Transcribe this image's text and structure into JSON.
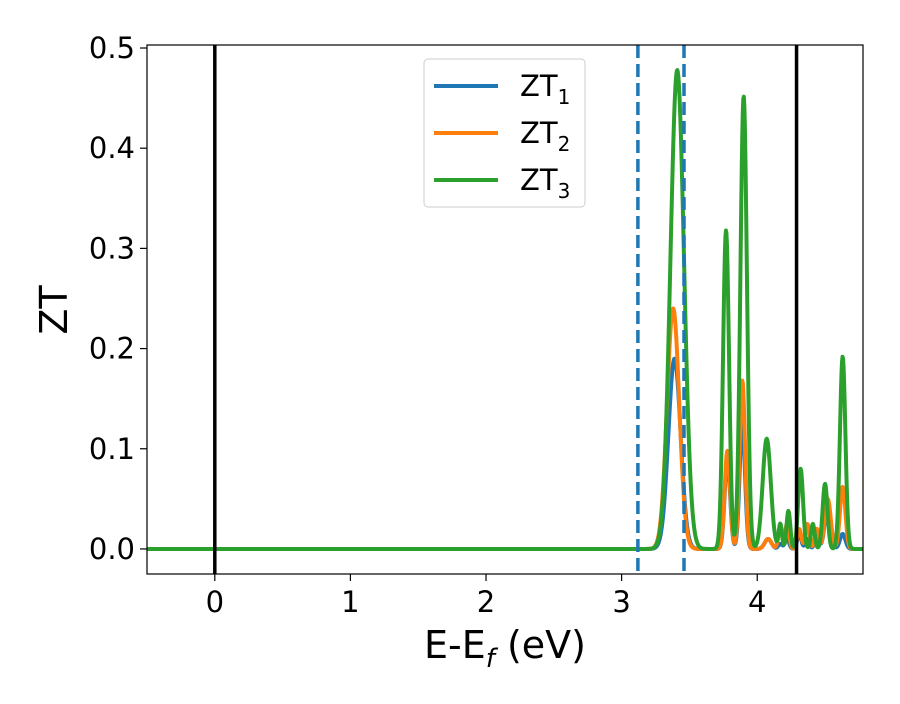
{
  "chart_data": {
    "type": "line",
    "title": "",
    "xlabel": {
      "main": "E-E",
      "sub": "f",
      "suffix": " (eV)"
    },
    "ylabel": "ZT",
    "xlim": [
      -0.5,
      4.78
    ],
    "ylim": [
      -0.025,
      0.503
    ],
    "xticks": [
      0,
      1,
      2,
      3,
      4
    ],
    "xtick_labels": [
      "0",
      "1",
      "2",
      "3",
      "4"
    ],
    "yticks": [
      0.0,
      0.1,
      0.2,
      0.3,
      0.4,
      0.5
    ],
    "ytick_labels": [
      "0.0",
      "0.1",
      "0.2",
      "0.3",
      "0.4",
      "0.5"
    ],
    "grid": false,
    "legend_position": "top-center",
    "reference_lines": [
      {
        "x": 0.0,
        "style": "solid",
        "color": "#000000"
      },
      {
        "x": 4.29,
        "style": "solid",
        "color": "#000000"
      },
      {
        "x": 3.12,
        "style": "dashed",
        "color": "#1f77b4"
      },
      {
        "x": 3.46,
        "style": "dashed",
        "color": "#1f77b4"
      }
    ],
    "series": [
      {
        "name": "ZT",
        "name_sub": "1",
        "color": "#1f77b4",
        "peaks": [
          [
            3.39,
            0.19,
            0.045
          ],
          [
            3.78,
            0.09,
            0.02
          ],
          [
            3.89,
            0.125,
            0.02
          ],
          [
            4.08,
            0.01,
            0.025
          ],
          [
            4.17,
            0.005,
            0.015
          ],
          [
            4.22,
            0.01,
            0.015
          ],
          [
            4.31,
            0.015,
            0.015
          ],
          [
            4.37,
            0.01,
            0.015
          ],
          [
            4.44,
            0.015,
            0.015
          ],
          [
            4.52,
            0.045,
            0.022
          ],
          [
            4.63,
            0.015,
            0.02
          ]
        ]
      },
      {
        "name": "ZT",
        "name_sub": "2",
        "color": "#ff7f0e",
        "peaks": [
          [
            3.38,
            0.24,
            0.045
          ],
          [
            3.78,
            0.098,
            0.02
          ],
          [
            3.89,
            0.168,
            0.02
          ],
          [
            4.08,
            0.01,
            0.025
          ],
          [
            4.17,
            0.02,
            0.015
          ],
          [
            4.22,
            0.025,
            0.015
          ],
          [
            4.31,
            0.02,
            0.015
          ],
          [
            4.37,
            0.025,
            0.015
          ],
          [
            4.44,
            0.02,
            0.015
          ],
          [
            4.52,
            0.05,
            0.022
          ],
          [
            4.63,
            0.062,
            0.02
          ]
        ]
      },
      {
        "name": "ZT",
        "name_sub": "3",
        "color": "#2ca02c",
        "peaks": [
          [
            3.41,
            0.478,
            0.05
          ],
          [
            3.77,
            0.318,
            0.022
          ],
          [
            3.9,
            0.452,
            0.024
          ],
          [
            4.07,
            0.11,
            0.03
          ],
          [
            4.17,
            0.025,
            0.012
          ],
          [
            4.23,
            0.038,
            0.014
          ],
          [
            4.32,
            0.08,
            0.018
          ],
          [
            4.41,
            0.025,
            0.014
          ],
          [
            4.5,
            0.065,
            0.018
          ],
          [
            4.63,
            0.192,
            0.02
          ]
        ]
      }
    ]
  }
}
